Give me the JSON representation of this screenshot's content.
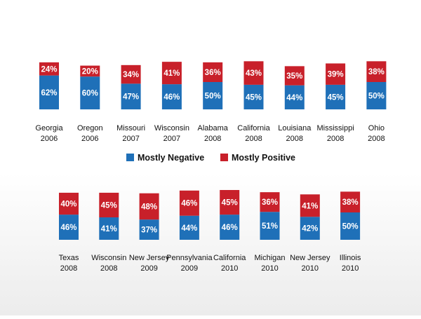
{
  "colors": {
    "negative": "#1f70b8",
    "positive": "#c8202a"
  },
  "legend": {
    "negative_label": "Mostly Negative",
    "positive_label": "Mostly Positive"
  },
  "chart_data": [
    {
      "type": "bar",
      "stacked": true,
      "categories": [
        [
          "Georgia",
          "2006"
        ],
        [
          "Oregon",
          "2006"
        ],
        [
          "Missouri",
          "2007"
        ],
        [
          "Wisconsin",
          "2007"
        ],
        [
          "Alabama",
          "2008"
        ],
        [
          "California",
          "2008"
        ],
        [
          "Louisiana",
          "2008"
        ],
        [
          "Mississippi",
          "2008"
        ],
        [
          "Ohio",
          "2008"
        ]
      ],
      "series": [
        {
          "name": "Mostly Negative",
          "values": [
            62,
            60,
            47,
            46,
            50,
            45,
            44,
            45,
            50
          ]
        },
        {
          "name": "Mostly Positive",
          "values": [
            24,
            20,
            34,
            41,
            36,
            43,
            35,
            39,
            38
          ]
        }
      ],
      "value_suffix": "%"
    },
    {
      "type": "bar",
      "stacked": true,
      "categories": [
        [
          "Texas",
          "2008"
        ],
        [
          "Wisconsin",
          "2008"
        ],
        [
          "New Jersey",
          "2009"
        ],
        [
          "Pennsylvania",
          "2009"
        ],
        [
          "California",
          "2010"
        ],
        [
          "Michigan",
          "2010"
        ],
        [
          "New Jersey",
          "2010"
        ],
        [
          "Illinois",
          "2010"
        ]
      ],
      "series": [
        {
          "name": "Mostly Negative",
          "values": [
            46,
            41,
            37,
            44,
            46,
            51,
            42,
            50
          ]
        },
        {
          "name": "Mostly Positive",
          "values": [
            40,
            45,
            48,
            46,
            45,
            36,
            41,
            38
          ]
        }
      ],
      "value_suffix": "%"
    }
  ]
}
